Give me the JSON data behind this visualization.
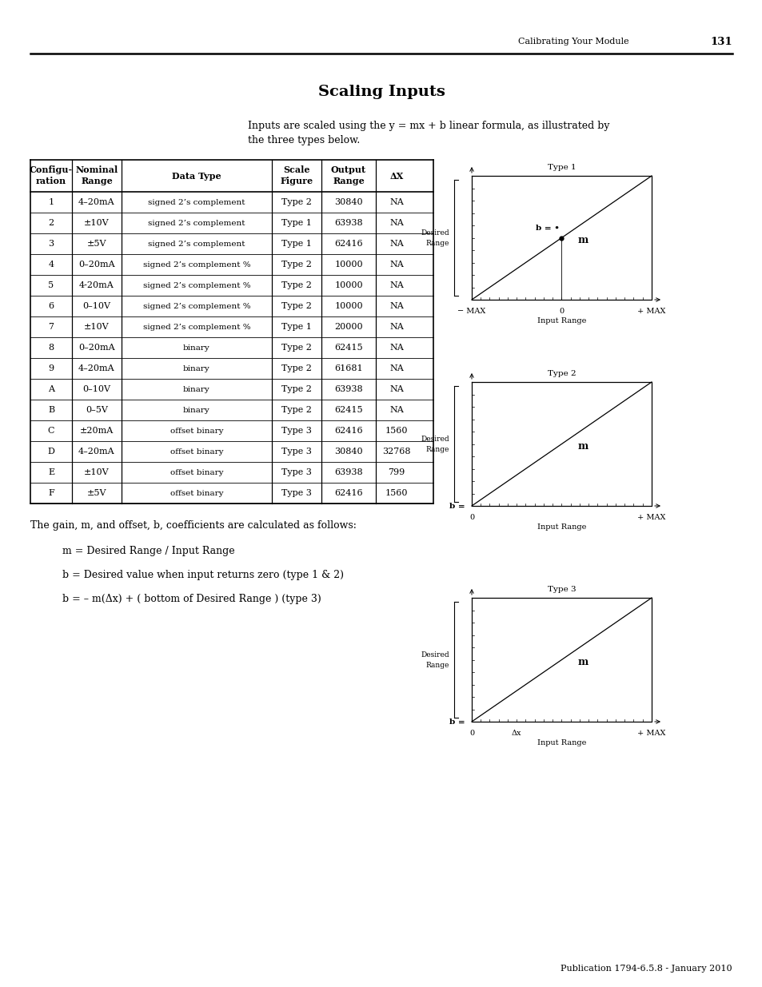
{
  "page_title": "Calibrating Your Module",
  "page_number": "131",
  "section_title": "Scaling Inputs",
  "intro_text_1": "Inputs are scaled using the y = mx + b linear formula, as illustrated by",
  "intro_text_2": "the three types below.",
  "table_headers_line1": [
    "Configu-",
    "Nominal",
    "Data Type",
    "Scale",
    "Output",
    "ΔX"
  ],
  "table_headers_line2": [
    "ration",
    "Range",
    "",
    "Figure",
    "Range",
    ""
  ],
  "table_rows": [
    [
      "1",
      "4–20mA",
      "signed 2’s complement",
      "Type 2",
      "30840",
      "NA"
    ],
    [
      "2",
      "±10V",
      "signed 2’s complement",
      "Type 1",
      "63938",
      "NA"
    ],
    [
      "3",
      "±5V",
      "signed 2’s complement",
      "Type 1",
      "62416",
      "NA"
    ],
    [
      "4",
      "0–20mA",
      "signed 2’s complement %",
      "Type 2",
      "10000",
      "NA"
    ],
    [
      "5",
      "4-20mA",
      "signed 2’s complement %",
      "Type 2",
      "10000",
      "NA"
    ],
    [
      "6",
      "0–10V",
      "signed 2’s complement %",
      "Type 2",
      "10000",
      "NA"
    ],
    [
      "7",
      "±10V",
      "signed 2’s complement %",
      "Type 1",
      "20000",
      "NA"
    ],
    [
      "8",
      "0–20mA",
      "binary",
      "Type 2",
      "62415",
      "NA"
    ],
    [
      "9",
      "4–20mA",
      "binary",
      "Type 2",
      "61681",
      "NA"
    ],
    [
      "A",
      "0–10V",
      "binary",
      "Type 2",
      "63938",
      "NA"
    ],
    [
      "B",
      "0–5V",
      "binary",
      "Type 2",
      "62415",
      "NA"
    ],
    [
      "C",
      "±20mA",
      "offset binary",
      "Type 3",
      "62416",
      "1560"
    ],
    [
      "D",
      "4–20mA",
      "offset binary",
      "Type 3",
      "30840",
      "32768"
    ],
    [
      "E",
      "±10V",
      "offset binary",
      "Type 3",
      "63938",
      "799"
    ],
    [
      "F",
      "±5V",
      "offset binary",
      "Type 3",
      "62416",
      "1560"
    ]
  ],
  "footer_text": "The gain, m, and offset, b, coefficients are calculated as follows:",
  "formula1": "m = Desired Range / Input Range",
  "formula2": "b = Desired value when input returns zero (type 1 & 2)",
  "formula3": "b = – m(Δx) + ( bottom of Desired Range ) (type 3)",
  "publication": "Publication 1794-6.5.8 - January 2010",
  "bg_color": "#ffffff"
}
